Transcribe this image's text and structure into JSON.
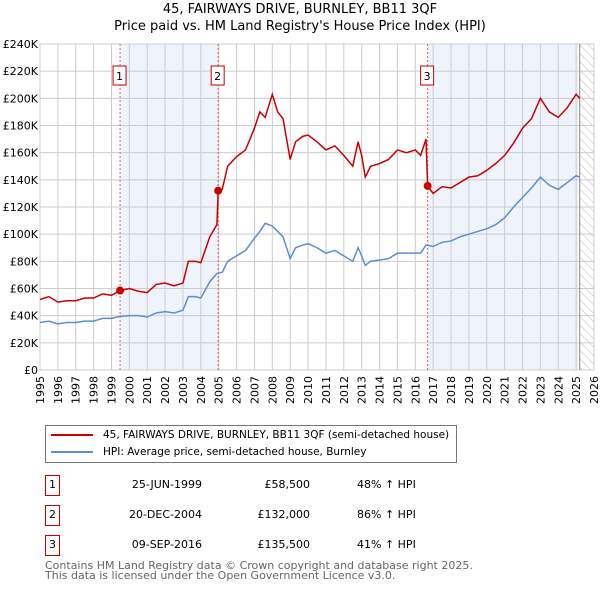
{
  "chart_data": {
    "type": "line",
    "title": "45, FAIRWAYS DRIVE, BURNLEY, BB11 3QF",
    "subtitle": "Price paid vs. HM Land Registry's House Price Index (HPI)",
    "xlim": [
      1995,
      2026
    ],
    "ylim": [
      0,
      240000
    ],
    "x_ticks": [
      "1995",
      "1996",
      "1997",
      "1998",
      "1999",
      "2000",
      "2001",
      "2002",
      "2003",
      "2004",
      "2005",
      "2006",
      "2007",
      "2008",
      "2009",
      "2010",
      "2011",
      "2012",
      "2013",
      "2014",
      "2015",
      "2016",
      "2017",
      "2018",
      "2019",
      "2020",
      "2021",
      "2022",
      "2023",
      "2024",
      "2025",
      "2026"
    ],
    "y_ticks": [
      {
        "v": 0,
        "l": "£0"
      },
      {
        "v": 20000,
        "l": "£20K"
      },
      {
        "v": 40000,
        "l": "£40K"
      },
      {
        "v": 60000,
        "l": "£60K"
      },
      {
        "v": 80000,
        "l": "£80K"
      },
      {
        "v": 100000,
        "l": "£100K"
      },
      {
        "v": 120000,
        "l": "£120K"
      },
      {
        "v": 140000,
        "l": "£140K"
      },
      {
        "v": 160000,
        "l": "£160K"
      },
      {
        "v": 180000,
        "l": "£180K"
      },
      {
        "v": 200000,
        "l": "£200K"
      },
      {
        "v": 220000,
        "l": "£220K"
      },
      {
        "v": 240000,
        "l": "£240K"
      }
    ],
    "grid": true,
    "series": [
      {
        "name": "45, FAIRWAYS DRIVE, BURNLEY, BB11 3QF (semi-detached house)",
        "color": "#cc0000",
        "x": [
          1995,
          1995.5,
          1996,
          1996.5,
          1997,
          1997.5,
          1998,
          1998.5,
          1999,
          1999.48,
          2000,
          2000.5,
          2001,
          2001.5,
          2002,
          2002.5,
          2003,
          2003.3,
          2003.7,
          2004,
          2004.5,
          2004.9,
          2004.97,
          2005.2,
          2005.5,
          2006,
          2006.5,
          2007,
          2007.3,
          2007.6,
          2008,
          2008.3,
          2008.6,
          2009,
          2009.3,
          2009.7,
          2010,
          2010.5,
          2011,
          2011.5,
          2012,
          2012.5,
          2012.8,
          2013,
          2013.2,
          2013.5,
          2014,
          2014.5,
          2015,
          2015.5,
          2016,
          2016.3,
          2016.6,
          2016.69,
          2017,
          2017.5,
          2018,
          2018.5,
          2019,
          2019.5,
          2020,
          2020.5,
          2021,
          2021.5,
          2022,
          2022.5,
          2023,
          2023.5,
          2024,
          2024.5,
          2025,
          2025.2
        ],
        "y": [
          52000,
          54000,
          50000,
          51000,
          51000,
          53000,
          53000,
          56000,
          55000,
          58500,
          60000,
          58000,
          57000,
          63000,
          64000,
          62000,
          64000,
          80000,
          80000,
          79000,
          98000,
          107000,
          132000,
          133000,
          150000,
          157000,
          162000,
          178000,
          190000,
          186000,
          203000,
          190000,
          185000,
          155000,
          168000,
          172000,
          173000,
          168000,
          162000,
          165000,
          158000,
          150000,
          168000,
          158000,
          142000,
          150000,
          152000,
          155000,
          162000,
          160000,
          162000,
          158000,
          170000,
          135500,
          130000,
          135000,
          134000,
          138000,
          142000,
          143000,
          147000,
          152000,
          158000,
          167000,
          178000,
          185000,
          200000,
          190000,
          186000,
          193000,
          203000,
          200000
        ]
      },
      {
        "name": "HPI: Average price, semi-detached house, Burnley",
        "color": "#5b8fd4",
        "x": [
          1995,
          1995.5,
          1996,
          1996.5,
          1997,
          1997.5,
          1998,
          1998.5,
          1999,
          1999.48,
          2000,
          2000.5,
          2001,
          2001.5,
          2002,
          2002.5,
          2003,
          2003.3,
          2003.7,
          2004,
          2004.5,
          2004.9,
          2005.2,
          2005.5,
          2006,
          2006.5,
          2007,
          2007.3,
          2007.6,
          2008,
          2008.3,
          2008.6,
          2009,
          2009.3,
          2009.7,
          2010,
          2010.5,
          2011,
          2011.5,
          2012,
          2012.5,
          2012.8,
          2013,
          2013.2,
          2013.5,
          2014,
          2014.5,
          2015,
          2015.5,
          2016,
          2016.3,
          2016.6,
          2017,
          2017.5,
          2018,
          2018.5,
          2019,
          2019.5,
          2020,
          2020.5,
          2021,
          2021.5,
          2022,
          2022.5,
          2023,
          2023.5,
          2024,
          2024.5,
          2025,
          2025.2
        ],
        "y": [
          35000,
          36000,
          34000,
          35000,
          35000,
          36000,
          36000,
          38000,
          38000,
          39500,
          40000,
          40000,
          39000,
          42000,
          43000,
          42000,
          44000,
          54000,
          54000,
          53000,
          65000,
          71000,
          72000,
          80000,
          84000,
          88000,
          97000,
          102000,
          108000,
          106000,
          102000,
          98000,
          82000,
          90000,
          92000,
          93000,
          90000,
          86000,
          88000,
          84000,
          80000,
          90000,
          84000,
          77000,
          80000,
          81000,
          82000,
          86000,
          86000,
          86000,
          86000,
          92000,
          91000,
          94000,
          95000,
          98000,
          100000,
          102000,
          104000,
          107000,
          112000,
          120000,
          127000,
          134000,
          142000,
          136000,
          133000,
          138000,
          143000,
          142000
        ]
      }
    ],
    "sales": [
      {
        "n": "1",
        "x": 1999.48,
        "y": 58500
      },
      {
        "n": "2",
        "x": 2004.97,
        "y": 132000
      },
      {
        "n": "3",
        "x": 2016.69,
        "y": 135500
      }
    ],
    "shaded_ranges": [
      [
        1999.48,
        2004.97
      ],
      [
        2016.69,
        2025.1
      ]
    ],
    "hatched_from": 2025.2,
    "legend_placement": "below"
  },
  "table": [
    {
      "n": "1",
      "date": "25-JUN-1999",
      "price": "£58,500",
      "hpi": "48% ↑ HPI"
    },
    {
      "n": "2",
      "date": "20-DEC-2004",
      "price": "£132,000",
      "hpi": "86% ↑ HPI"
    },
    {
      "n": "3",
      "date": "09-SEP-2016",
      "price": "£135,500",
      "hpi": "41% ↑ HPI"
    }
  ],
  "footer": {
    "line1": "Contains HM Land Registry data © Crown copyright and database right 2025.",
    "line2": "This data is licensed under the Open Government Licence v3.0."
  }
}
